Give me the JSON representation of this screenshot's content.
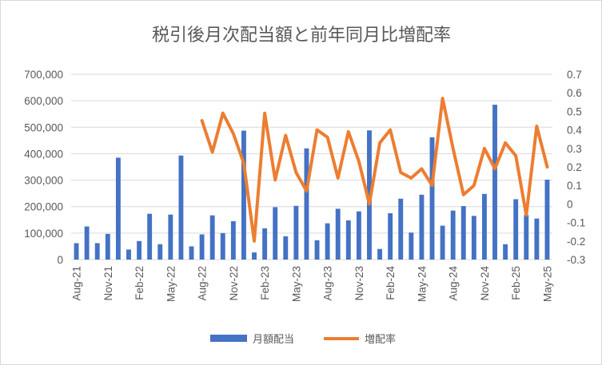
{
  "chart_data": {
    "type": "bar+line",
    "title": "税引後月次配当額と前年同月比増配率",
    "categories": [
      "Aug-21",
      "Sep-21",
      "Oct-21",
      "Nov-21",
      "Dec-21",
      "Jan-22",
      "Feb-22",
      "Mar-22",
      "Apr-22",
      "May-22",
      "Jun-22",
      "Jul-22",
      "Aug-22",
      "Sep-22",
      "Oct-22",
      "Nov-22",
      "Dec-22",
      "Jan-23",
      "Feb-23",
      "Mar-23",
      "Apr-23",
      "May-23",
      "Jun-23",
      "Jul-23",
      "Aug-23",
      "Sep-23",
      "Oct-23",
      "Nov-23",
      "Dec-23",
      "Jan-24",
      "Feb-24",
      "Mar-24",
      "Apr-24",
      "May-24",
      "Jun-24",
      "Jul-24",
      "Aug-24",
      "Sep-24",
      "Oct-24",
      "Nov-24",
      "Dec-24",
      "Jan-25",
      "Feb-25",
      "Mar-25",
      "Apr-25",
      "May-25"
    ],
    "x_tick_labels": [
      "Aug-21",
      "Nov-21",
      "Feb-22",
      "May-22",
      "Aug-22",
      "Nov-22",
      "Feb-23",
      "May-23",
      "Aug-23",
      "Nov-23",
      "Feb-24",
      "May-24",
      "Aug-24",
      "Nov-24",
      "Feb-25",
      "May-25"
    ],
    "y_left": {
      "ylim": [
        0,
        700000
      ],
      "ticks": [
        0,
        100000,
        200000,
        300000,
        400000,
        500000,
        600000,
        700000
      ],
      "tick_labels": [
        "0",
        "100,000",
        "200,000",
        "300,000",
        "400,000",
        "500,000",
        "600,000",
        "700,000"
      ]
    },
    "y_right": {
      "ylim": [
        -0.3,
        0.7
      ],
      "ticks": [
        -0.3,
        -0.2,
        -0.1,
        0,
        0.1,
        0.2,
        0.3,
        0.4,
        0.5,
        0.6,
        0.7
      ],
      "tick_labels": [
        "-0.3",
        "-0.2",
        "-0.1",
        "0",
        "0.1",
        "0.2",
        "0.3",
        "0.4",
        "0.5",
        "0.6",
        "0.7"
      ]
    },
    "series": [
      {
        "name": "月額配当",
        "kind": "bar",
        "axis": "left",
        "color": "#4472C4",
        "values": [
          62000,
          125000,
          62000,
          97000,
          385000,
          38000,
          70000,
          173000,
          58000,
          170000,
          393000,
          50000,
          95000,
          167000,
          100000,
          145000,
          487000,
          27000,
          118000,
          198000,
          88000,
          203000,
          420000,
          73000,
          137000,
          192000,
          148000,
          182000,
          488000,
          40000,
          175000,
          230000,
          102000,
          245000,
          462000,
          128000,
          185000,
          202000,
          165000,
          248000,
          585000,
          58000,
          228000,
          168000,
          155000,
          302000
        ]
      },
      {
        "name": "増配率",
        "kind": "line",
        "axis": "right",
        "color": "#ED7D31",
        "values": [
          null,
          null,
          null,
          null,
          null,
          null,
          null,
          null,
          null,
          null,
          null,
          null,
          0.45,
          0.28,
          0.49,
          0.38,
          0.22,
          -0.2,
          0.49,
          0.13,
          0.37,
          0.17,
          0.07,
          0.4,
          0.36,
          0.14,
          0.39,
          0.23,
          0.0,
          0.33,
          0.4,
          0.17,
          0.14,
          0.19,
          0.1,
          0.57,
          0.3,
          0.05,
          0.1,
          0.3,
          0.19,
          0.33,
          0.26,
          -0.06,
          0.42,
          0.2
        ]
      }
    ],
    "legend_position": "bottom"
  }
}
